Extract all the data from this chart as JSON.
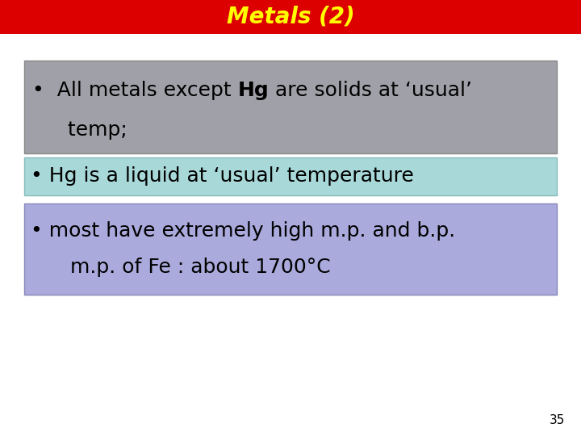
{
  "title": "Metals (2)",
  "title_color": "#FFFF00",
  "title_bg_color": "#DD0000",
  "title_fontsize": 20,
  "bg_color": "#FFFFFF",
  "box1_text_pre": "•  All metals except ",
  "box1_bold": "Hg",
  "box1_text_post": " are solids at ‘usual’",
  "box1_text_line2": "   temp;",
  "box1_bg": "#A0A0A8",
  "box1_edge": "#888888",
  "box2_text": "• Hg is a liquid at ‘usual’ temperature",
  "box2_bg": "#A8D8D8",
  "box2_edge": "#88BBBB",
  "box3_line1": "• most have extremely high m.p. and b.p.",
  "box3_line2": "    m.p. of Fe : about 1700°C",
  "box3_bg": "#AAAADD",
  "box3_edge": "#8888BB",
  "page_number": "35",
  "text_color": "#000000",
  "font_size_box": 18,
  "font_size_small": 11
}
